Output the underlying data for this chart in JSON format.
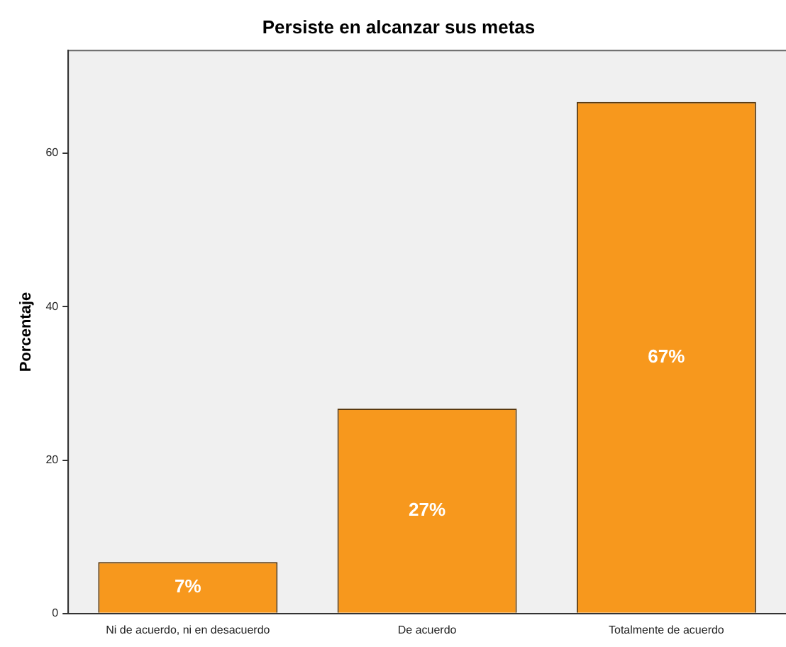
{
  "chart_data": {
    "type": "bar",
    "title": "Persiste en alcanzar sus metas",
    "ylabel": "Porcentaje",
    "categories": [
      "Ni de acuerdo, ni en desacuerdo",
      "De acuerdo",
      "Totalmente de acuerdo"
    ],
    "values": [
      6.7,
      26.7,
      66.7
    ],
    "value_labels": [
      "7%",
      "27%",
      "67%"
    ],
    "color": "#f7981d",
    "ylim": [
      0,
      73.4
    ],
    "yticks": [
      0,
      20,
      40,
      60
    ],
    "grid": false,
    "legend": false
  }
}
